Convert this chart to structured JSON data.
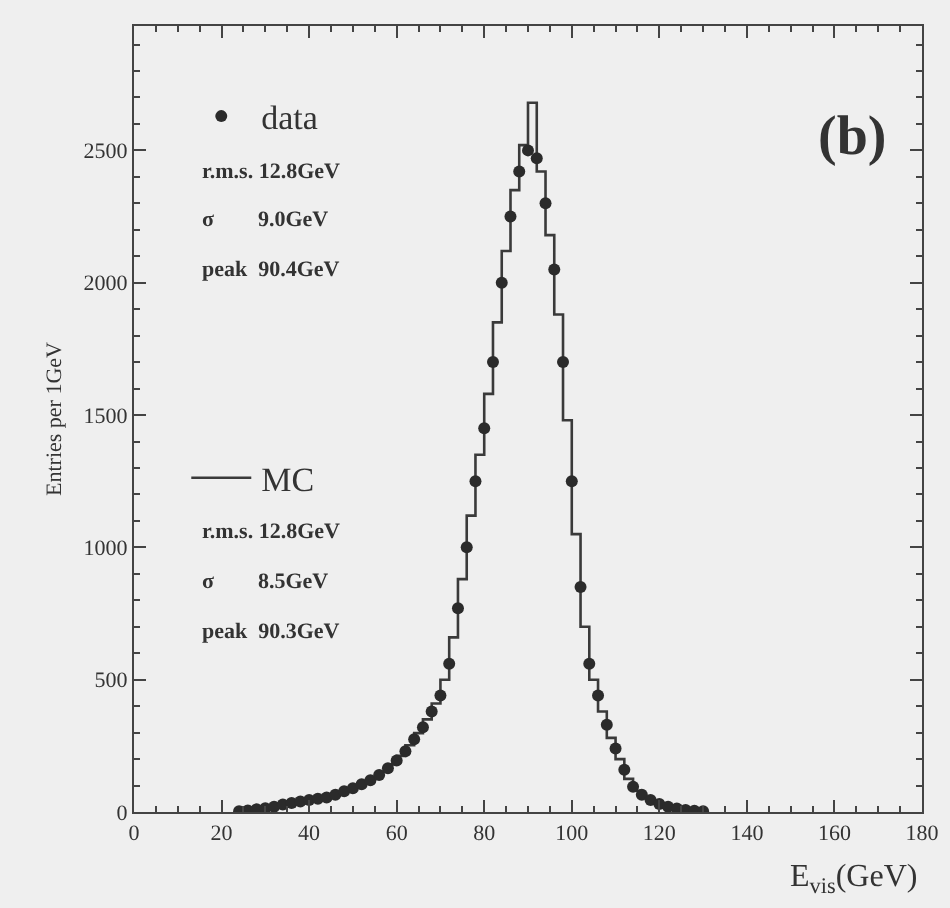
{
  "chart_data": {
    "type": "scatter",
    "xlabel": "E$_{vis}$(GeV)",
    "ylabel": "Entries per 1GeV",
    "xlim": [
      0,
      180
    ],
    "xticks": [
      0,
      20,
      40,
      60,
      80,
      100,
      120,
      140,
      160,
      180
    ],
    "ylim": [
      0,
      2970
    ],
    "yticks": [
      0,
      500,
      1000,
      1500,
      2000,
      2500
    ],
    "grid": false,
    "legend": "top left",
    "annotations": [
      "(b)",
      "r.m.s. 12.8GeV",
      "σ        9.0GeV",
      "peak  90.4GeV",
      "r.m.s. 12.8GeV",
      "σ        8.5GeV",
      "peak  90.3GeV"
    ],
    "series": [
      {
        "name": "data",
        "marker": "circle",
        "color": "#2b2b2b",
        "x": [
          24,
          26,
          28,
          30,
          32,
          34,
          36,
          38,
          40,
          42,
          44,
          46,
          48,
          50,
          52,
          54,
          56,
          58,
          60,
          62,
          64,
          66,
          68,
          70,
          72,
          74,
          76,
          78,
          80,
          82,
          84,
          86,
          88,
          90,
          92,
          94,
          96,
          98,
          100,
          102,
          104,
          106,
          108,
          110,
          112,
          114,
          116,
          118,
          120,
          122,
          124,
          126,
          128,
          130
        ],
        "values": [
          3,
          6,
          10,
          14,
          20,
          28,
          34,
          40,
          45,
          50,
          55,
          65,
          78,
          90,
          105,
          120,
          140,
          165,
          195,
          230,
          275,
          320,
          380,
          440,
          560,
          770,
          1000,
          1250,
          1450,
          1700,
          2000,
          2250,
          2420,
          2500,
          2470,
          2300,
          2050,
          1700,
          1250,
          850,
          560,
          440,
          330,
          240,
          160,
          95,
          65,
          45,
          30,
          20,
          13,
          8,
          5,
          3
        ]
      },
      {
        "name": "MC",
        "type": "step",
        "color": "#3a3a3a",
        "line_style": "solid",
        "x": [
          23,
          25,
          27,
          29,
          31,
          33,
          35,
          37,
          39,
          41,
          43,
          45,
          47,
          49,
          51,
          53,
          55,
          57,
          59,
          61,
          63,
          65,
          67,
          69,
          71,
          73,
          75,
          77,
          79,
          81,
          83,
          85,
          87,
          89,
          91,
          93,
          95,
          97,
          99,
          101,
          103,
          105,
          107,
          109,
          111,
          113,
          115,
          117,
          119,
          121,
          123,
          125,
          127,
          129,
          131
        ],
        "values": [
          2,
          5,
          8,
          12,
          17,
          24,
          31,
          37,
          43,
          48,
          53,
          60,
          72,
          84,
          98,
          112,
          130,
          152,
          180,
          212,
          252,
          298,
          350,
          410,
          500,
          660,
          880,
          1120,
          1350,
          1580,
          1850,
          2120,
          2350,
          2520,
          2680,
          2420,
          2180,
          1880,
          1480,
          1050,
          700,
          500,
          380,
          280,
          200,
          125,
          80,
          55,
          38,
          25,
          16,
          10,
          6,
          4,
          2
        ]
      }
    ]
  }
}
